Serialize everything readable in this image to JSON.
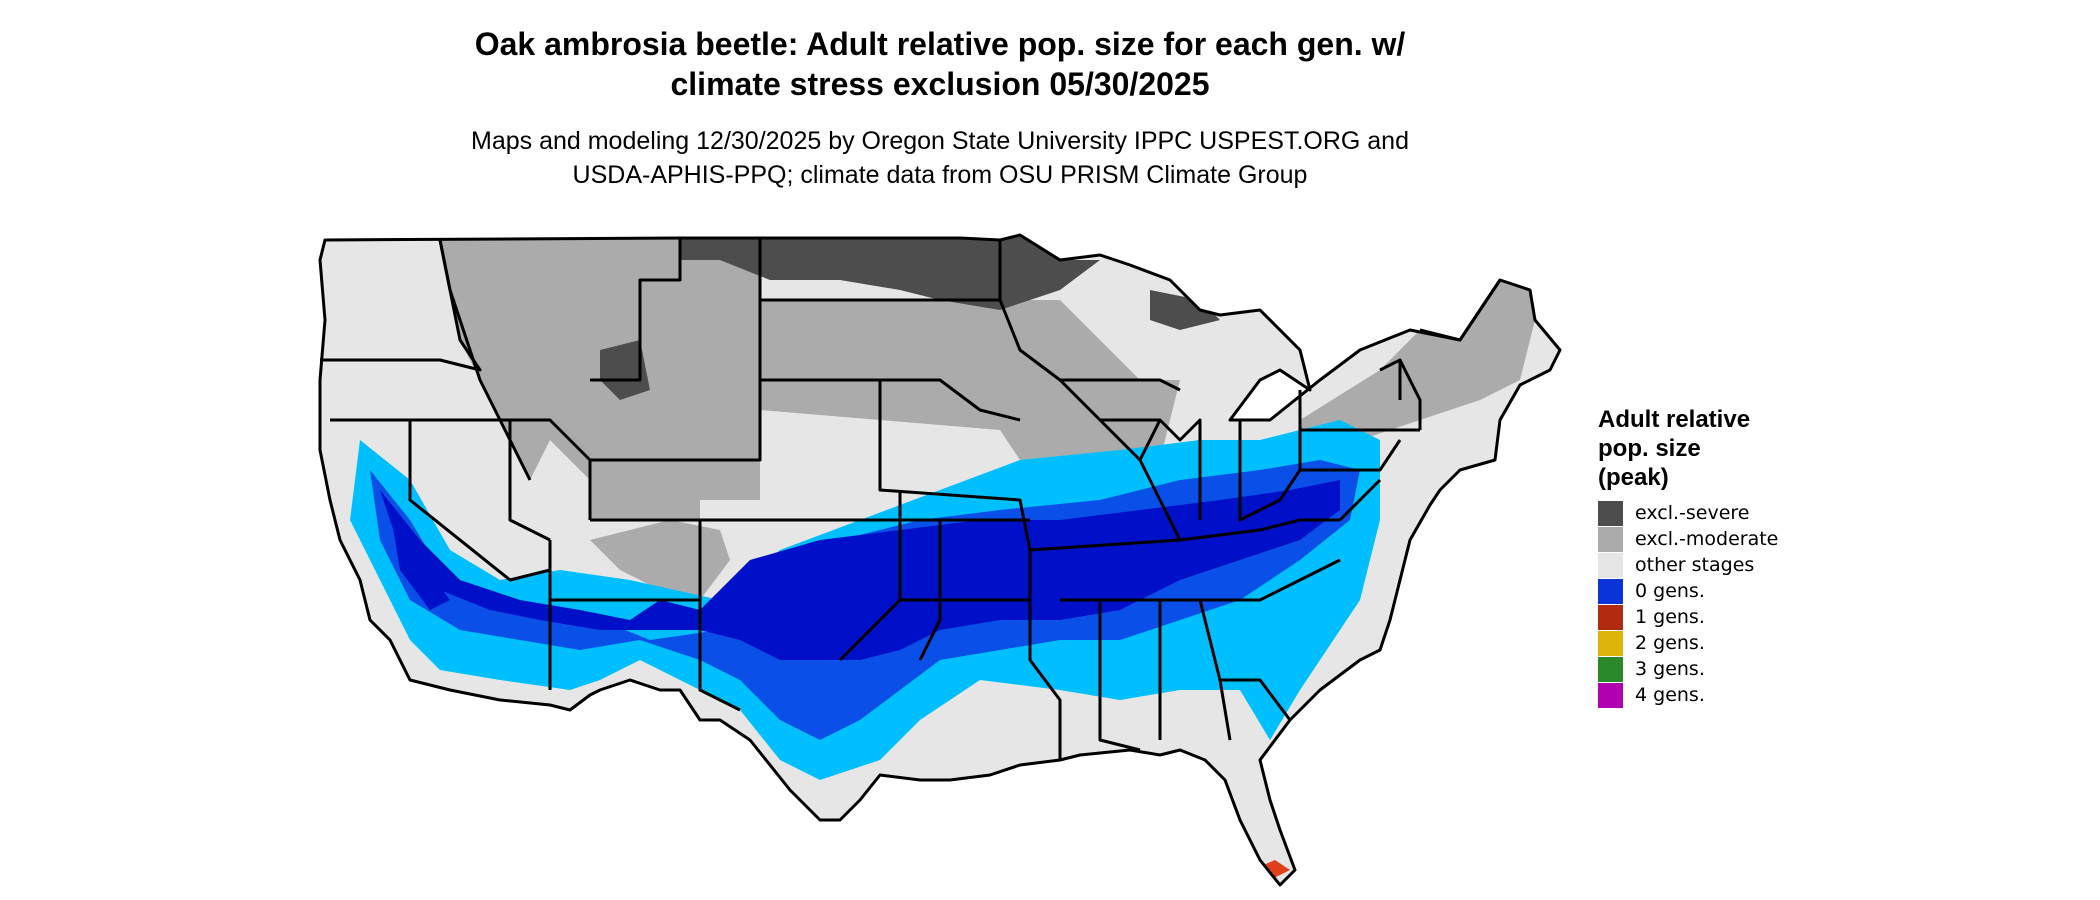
{
  "title": {
    "line1": "Oak ambrosia beetle: Adult relative pop. size for each gen. w/",
    "line2": "climate stress exclusion 05/30/2025"
  },
  "subtitle": {
    "line1": "Maps and modeling 12/30/2025 by Oregon State University IPPC USPEST.ORG and",
    "line2": "USDA-APHIS-PPQ; climate data from OSU PRISM Climate Group"
  },
  "legend": {
    "title_line1": "Adult relative",
    "title_line2": "pop. size",
    "title_line3": "(peak)",
    "items": [
      {
        "label": "excl.-severe",
        "color": "#4d4d4d"
      },
      {
        "label": "excl.-moderate",
        "color": "#ababab"
      },
      {
        "label": "other stages",
        "color": "#e6e6e6"
      },
      {
        "label": "0 gens.",
        "color": "#0a33d9"
      },
      {
        "label": "1 gens.",
        "color": "#b22a10"
      },
      {
        "label": "2 gens.",
        "color": "#dcb40a"
      },
      {
        "label": "3 gens.",
        "color": "#2a8a2a"
      },
      {
        "label": "4 gens.",
        "color": "#b000b0"
      }
    ]
  },
  "map_colors": {
    "excl_severe": "#4d4d4d",
    "excl_moderate": "#ababab",
    "other_stages": "#e6e6e6",
    "zero_gens_dark": "#0010c8",
    "zero_gens_mid": "#0a50e8",
    "zero_gens_light": "#00bfff",
    "one_gens": "#e0401a",
    "boundary": "#000000"
  }
}
